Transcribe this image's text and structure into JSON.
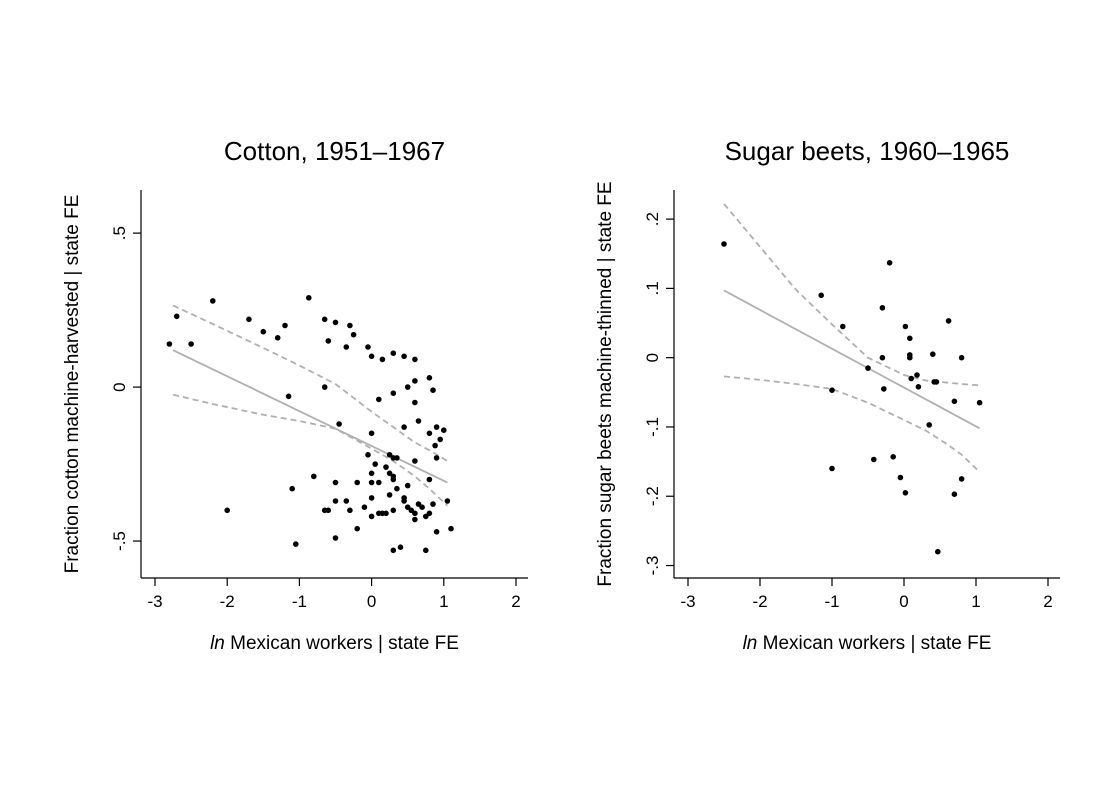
{
  "chart_data": [
    {
      "type": "scatter",
      "title": "Cotton, 1951–1967",
      "xlabel_italic": "ln",
      "xlabel_rest": " Mexican workers | state FE",
      "ylabel": "Fraction cotton machine-harvested | state FE",
      "xlim": [
        -3.2,
        2.2
      ],
      "ylim": [
        -0.62,
        0.64
      ],
      "xticks": [
        -3,
        -2,
        -1,
        0,
        1,
        2
      ],
      "xtick_labels": [
        "-3",
        "-2",
        "-1",
        "0",
        "1",
        "2"
      ],
      "yticks": [
        -0.5,
        0,
        0.5
      ],
      "ytick_labels": [
        "-.5",
        "0",
        ".5"
      ],
      "grid": false,
      "fit_line": {
        "x": [
          -2.75,
          1.05
        ],
        "y": [
          0.12,
          -0.31
        ],
        "color": "#b0b0b0"
      },
      "ci_upper": {
        "x": [
          -2.75,
          -2.2,
          -1.5,
          -1.0,
          -0.5,
          0.0,
          0.3,
          0.6,
          0.8,
          1.05
        ],
        "y": [
          0.265,
          0.205,
          0.127,
          0.07,
          0.01,
          -0.08,
          -0.13,
          -0.18,
          -0.205,
          -0.24
        ],
        "color": "#b0b0b0"
      },
      "ci_lower": {
        "x": [
          -2.75,
          -2.2,
          -1.5,
          -1.0,
          -0.5,
          0.0,
          0.3,
          0.6,
          0.8,
          1.05
        ],
        "y": [
          -0.025,
          -0.055,
          -0.09,
          -0.11,
          -0.135,
          -0.2,
          -0.24,
          -0.29,
          -0.33,
          -0.385
        ],
        "color": "#b0b0b0"
      },
      "points": [
        [
          -2.8,
          0.14
        ],
        [
          -2.7,
          0.23
        ],
        [
          -2.5,
          0.14
        ],
        [
          -2.2,
          0.28
        ],
        [
          -1.7,
          0.22
        ],
        [
          -1.5,
          0.18
        ],
        [
          -1.3,
          0.16
        ],
        [
          -1.2,
          0.2
        ],
        [
          -0.87,
          0.29
        ],
        [
          -0.65,
          0.22
        ],
        [
          -0.5,
          0.21
        ],
        [
          -0.3,
          0.2
        ],
        [
          -0.6,
          0.15
        ],
        [
          -0.35,
          0.13
        ],
        [
          -0.25,
          0.17
        ],
        [
          -0.05,
          0.13
        ],
        [
          0.0,
          0.1
        ],
        [
          0.15,
          0.09
        ],
        [
          0.3,
          0.11
        ],
        [
          0.45,
          0.1
        ],
        [
          0.6,
          0.09
        ],
        [
          -0.65,
          0.0
        ],
        [
          -1.15,
          -0.03
        ],
        [
          0.1,
          -0.04
        ],
        [
          0.3,
          -0.02
        ],
        [
          0.5,
          0.0
        ],
        [
          0.6,
          0.02
        ],
        [
          0.8,
          0.03
        ],
        [
          0.85,
          -0.01
        ],
        [
          0.6,
          -0.05
        ],
        [
          -0.45,
          -0.12
        ],
        [
          0.45,
          -0.13
        ],
        [
          0.65,
          -0.11
        ],
        [
          0.8,
          -0.15
        ],
        [
          0.9,
          -0.13
        ],
        [
          1.0,
          -0.14
        ],
        [
          0.88,
          -0.19
        ],
        [
          0.95,
          -0.17
        ],
        [
          0.0,
          -0.15
        ],
        [
          -0.05,
          -0.22
        ],
        [
          0.05,
          -0.25
        ],
        [
          0.25,
          -0.22
        ],
        [
          0.3,
          -0.23
        ],
        [
          0.35,
          -0.23
        ],
        [
          0.2,
          -0.26
        ],
        [
          0.0,
          -0.28
        ],
        [
          0.25,
          -0.28
        ],
        [
          0.3,
          -0.29
        ],
        [
          0.1,
          -0.31
        ],
        [
          -0.8,
          -0.29
        ],
        [
          -0.5,
          -0.31
        ],
        [
          -0.2,
          -0.31
        ],
        [
          0.0,
          -0.31
        ],
        [
          0.3,
          -0.3
        ],
        [
          0.5,
          -0.32
        ],
        [
          0.6,
          -0.24
        ],
        [
          0.8,
          -0.3
        ],
        [
          0.9,
          -0.23
        ],
        [
          -1.1,
          -0.33
        ],
        [
          -0.5,
          -0.37
        ],
        [
          -0.35,
          -0.37
        ],
        [
          -0.6,
          -0.4
        ],
        [
          -0.65,
          -0.4
        ],
        [
          -0.3,
          -0.4
        ],
        [
          -0.1,
          -0.39
        ],
        [
          0.0,
          -0.36
        ],
        [
          0.1,
          -0.41
        ],
        [
          0.2,
          -0.41
        ],
        [
          0.25,
          -0.35
        ],
        [
          0.35,
          -0.33
        ],
        [
          0.45,
          -0.37
        ],
        [
          0.5,
          -0.39
        ],
        [
          0.55,
          -0.4
        ],
        [
          0.6,
          -0.41
        ],
        [
          0.6,
          -0.43
        ],
        [
          0.65,
          -0.38
        ],
        [
          0.7,
          -0.39
        ],
        [
          0.75,
          -0.42
        ],
        [
          0.8,
          -0.41
        ],
        [
          0.85,
          -0.38
        ],
        [
          0.9,
          -0.47
        ],
        [
          1.05,
          -0.37
        ],
        [
          1.1,
          -0.46
        ],
        [
          -2.0,
          -0.4
        ],
        [
          -0.2,
          -0.46
        ],
        [
          -0.5,
          -0.49
        ],
        [
          -1.05,
          -0.51
        ],
        [
          0.3,
          -0.53
        ],
        [
          0.4,
          -0.52
        ],
        [
          0.75,
          -0.53
        ],
        [
          0.0,
          -0.42
        ],
        [
          0.15,
          -0.41
        ],
        [
          0.3,
          -0.4
        ],
        [
          0.45,
          -0.36
        ]
      ]
    },
    {
      "type": "scatter",
      "title": "Sugar beets, 1960–1965",
      "xlabel_italic": "ln",
      "xlabel_rest": " Mexican workers | state FE",
      "ylabel": "Fraction sugar beets machine-thinned | state FE",
      "xlim": [
        -3.2,
        2.2
      ],
      "ylim": [
        -0.318,
        0.242
      ],
      "xticks": [
        -3,
        -2,
        -1,
        0,
        1,
        2
      ],
      "xtick_labels": [
        "-3",
        "-2",
        "-1",
        "0",
        "1",
        "2"
      ],
      "yticks": [
        -0.3,
        -0.2,
        -0.1,
        0,
        0.1,
        0.2
      ],
      "ytick_labels": [
        "-.3",
        "-.2",
        "-.1",
        "0",
        ".1",
        ".2"
      ],
      "grid": false,
      "fit_line": {
        "x": [
          -2.5,
          1.05
        ],
        "y": [
          0.097,
          -0.102
        ],
        "color": "#b0b0b0"
      },
      "ci_upper": {
        "x": [
          -2.5,
          -2.0,
          -1.5,
          -1.0,
          -0.5,
          0.0,
          0.3,
          0.6,
          0.8,
          1.05
        ],
        "y": [
          0.222,
          0.16,
          0.098,
          0.048,
          0.0,
          -0.025,
          -0.033,
          -0.036,
          -0.038,
          -0.04
        ],
        "color": "#b0b0b0"
      },
      "ci_lower": {
        "x": [
          -2.5,
          -2.0,
          -1.5,
          -1.0,
          -0.5,
          0.0,
          0.3,
          0.6,
          0.8,
          1.05
        ],
        "y": [
          -0.027,
          -0.032,
          -0.038,
          -0.045,
          -0.065,
          -0.09,
          -0.105,
          -0.125,
          -0.14,
          -0.165
        ],
        "color": "#b0b0b0"
      },
      "points": [
        [
          -2.5,
          0.164
        ],
        [
          -1.15,
          0.09
        ],
        [
          -0.85,
          0.045
        ],
        [
          -0.2,
          0.137
        ],
        [
          -0.3,
          0.072
        ],
        [
          0.02,
          0.045
        ],
        [
          0.08,
          0.028
        ],
        [
          0.62,
          0.053
        ],
        [
          -0.3,
          0.0
        ],
        [
          0.08,
          0.004
        ],
        [
          0.08,
          0.0
        ],
        [
          0.4,
          0.005
        ],
        [
          0.8,
          0.0
        ],
        [
          -0.5,
          -0.015
        ],
        [
          0.18,
          -0.025
        ],
        [
          0.1,
          -0.03
        ],
        [
          0.2,
          -0.042
        ],
        [
          -0.28,
          -0.045
        ],
        [
          0.42,
          -0.035
        ],
        [
          0.45,
          -0.035
        ],
        [
          0.7,
          -0.063
        ],
        [
          1.05,
          -0.065
        ],
        [
          -1.0,
          -0.047
        ],
        [
          0.35,
          -0.097
        ],
        [
          -0.42,
          -0.147
        ],
        [
          -0.15,
          -0.143
        ],
        [
          -1.0,
          -0.16
        ],
        [
          -0.05,
          -0.173
        ],
        [
          0.8,
          -0.175
        ],
        [
          0.02,
          -0.195
        ],
        [
          0.7,
          -0.197
        ],
        [
          0.47,
          -0.28
        ]
      ]
    }
  ]
}
